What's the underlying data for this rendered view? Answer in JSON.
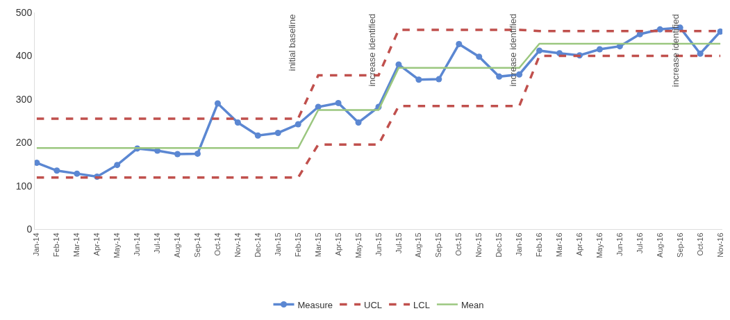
{
  "chart_data": {
    "type": "line",
    "categories": [
      "Jan-14",
      "Feb-14",
      "Mar-14",
      "Apr-14",
      "May-14",
      "Jun-14",
      "Jul-14",
      "Aug-14",
      "Sep-14",
      "Oct-14",
      "Nov-14",
      "Dec-14",
      "Jan-15",
      "Feb-15",
      "Mar-15",
      "Apr-15",
      "May-15",
      "Jun-15",
      "Jul-15",
      "Aug-15",
      "Sep-15",
      "Oct-15",
      "Nov-15",
      "Dec-15",
      "Jan-16",
      "Feb-16",
      "Mar-16",
      "Apr-16",
      "May-16",
      "Jun-16",
      "Jul-16",
      "Aug-16",
      "Sep-16",
      "Oct-16",
      "Nov-16"
    ],
    "series": [
      {
        "name": "Measure",
        "color": "#5b87d2",
        "marker": "circle",
        "line_style": "solid",
        "values": [
          153,
          135,
          128,
          121,
          148,
          186,
          181,
          173,
          174,
          290,
          246,
          216,
          222,
          242,
          282,
          291,
          246,
          282,
          380,
          345,
          346,
          427,
          398,
          352,
          357,
          412,
          406,
          401,
          415,
          422,
          450,
          461,
          465,
          405,
          456
        ]
      },
      {
        "name": "UCL",
        "color": "#c0504d",
        "marker": "none",
        "line_style": "dashed",
        "values": [
          255,
          255,
          255,
          255,
          255,
          255,
          255,
          255,
          255,
          255,
          255,
          255,
          255,
          255,
          355,
          355,
          355,
          355,
          460,
          460,
          460,
          460,
          460,
          460,
          460,
          457,
          457,
          457,
          457,
          457,
          457,
          457,
          457,
          457,
          457
        ]
      },
      {
        "name": "LCL",
        "color": "#c0504d",
        "marker": "none",
        "line_style": "dashed",
        "values": [
          119,
          119,
          119,
          119,
          119,
          119,
          119,
          119,
          119,
          119,
          119,
          119,
          119,
          119,
          195,
          195,
          195,
          195,
          284,
          284,
          284,
          284,
          284,
          284,
          284,
          400,
          400,
          400,
          400,
          400,
          400,
          400,
          400,
          400,
          400
        ]
      },
      {
        "name": "Mean",
        "color": "#9bc77f",
        "marker": "none",
        "line_style": "solid",
        "values": [
          187,
          187,
          187,
          187,
          187,
          187,
          187,
          187,
          187,
          187,
          187,
          187,
          187,
          187,
          275,
          275,
          275,
          275,
          372,
          372,
          372,
          372,
          372,
          372,
          372,
          428,
          428,
          428,
          428,
          428,
          428,
          428,
          428,
          428,
          428
        ]
      }
    ],
    "annotations": [
      "initial baseline",
      "increase identified",
      "increase identified",
      "increase identified"
    ],
    "ylim": [
      0,
      500
    ],
    "yticks": [
      0,
      100,
      200,
      300,
      400,
      500
    ],
    "grid": false,
    "legend": "bottom"
  }
}
